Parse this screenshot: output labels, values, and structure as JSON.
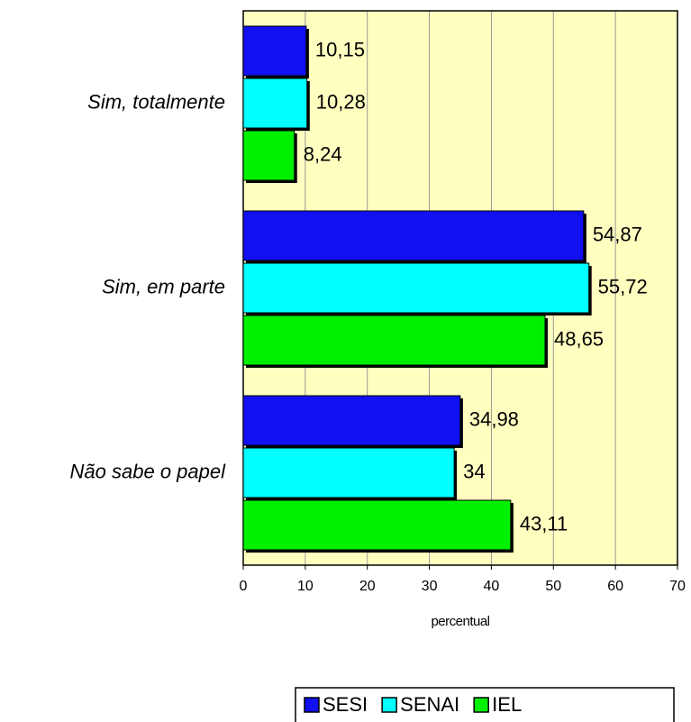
{
  "chart_data": {
    "type": "hbar",
    "categories": [
      "Sim, totalmente",
      "Sim, em parte",
      "Não sabe o papel"
    ],
    "series": [
      {
        "name": "SESI",
        "color": "#1010f0",
        "values": [
          10.15,
          54.87,
          34.98
        ],
        "value_labels": [
          "10,15",
          "54,87",
          "34,98"
        ]
      },
      {
        "name": "SENAI",
        "color": "#00ffff",
        "values": [
          10.28,
          55.72,
          34
        ],
        "value_labels": [
          "10,28",
          "55,72",
          "34"
        ]
      },
      {
        "name": "IEL",
        "color": "#00f000",
        "values": [
          8.24,
          48.65,
          43.11
        ],
        "value_labels": [
          "8,24",
          "48,65",
          "43,11"
        ]
      }
    ],
    "xlabel": "percentual",
    "xlim": [
      0,
      70
    ],
    "xticks": [
      0,
      10,
      20,
      30,
      40,
      50,
      60,
      70
    ],
    "grid": true,
    "legend": "bottom"
  }
}
